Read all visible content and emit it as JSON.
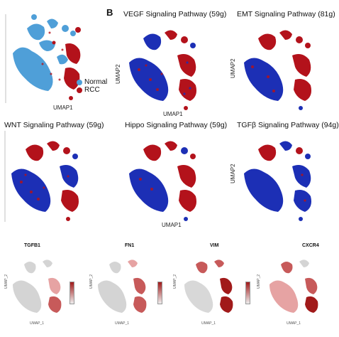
{
  "figure": {
    "panel_a_legend": [
      {
        "label": "Normal",
        "color": "#4f9fd8"
      },
      {
        "label": "RCC",
        "color": "#b3121b"
      }
    ],
    "panel_b_letter": "B",
    "panel_a_xlabel": "UMAP1",
    "umap1": "UMAP1",
    "umap2": "UMAP2",
    "pathways": [
      {
        "title": "VEGF Signaling Pathway (59g)",
        "xlabel": "UMAP1",
        "ylabel": "UMAP2"
      },
      {
        "title": "EMT Signaling Pathway (81g)",
        "xlabel": "",
        "ylabel": "UMAP2"
      },
      {
        "title": "WNT Signaling Pathway (59g)",
        "xlabel": "",
        "ylabel": ""
      },
      {
        "title": "Hippo Signaling Pathway (59g)",
        "xlabel": "UMAP1",
        "ylabel": ""
      },
      {
        "title": "TGFβ Signaling Pathway (94g)",
        "xlabel": "",
        "ylabel": "UMAP2"
      }
    ],
    "genes": [
      {
        "name": "TGFB1",
        "ylabel": "UMAP_2",
        "xlabel": "UMAP_1"
      },
      {
        "name": "FN1",
        "ylabel": "UMAP_2",
        "xlabel": "UMAP_1"
      },
      {
        "name": "VIM",
        "ylabel": "UMAP_2",
        "xlabel": "UMAP_1"
      },
      {
        "name": "CXCR4",
        "ylabel": "UMAP_2",
        "xlabel": "UMAP_1"
      }
    ],
    "colors": {
      "high": "#b3121b",
      "low": "#1c2fb5",
      "normal": "#4f9fd8",
      "grey": "#d4d4d4",
      "feature_high": "#a11a1a"
    }
  }
}
